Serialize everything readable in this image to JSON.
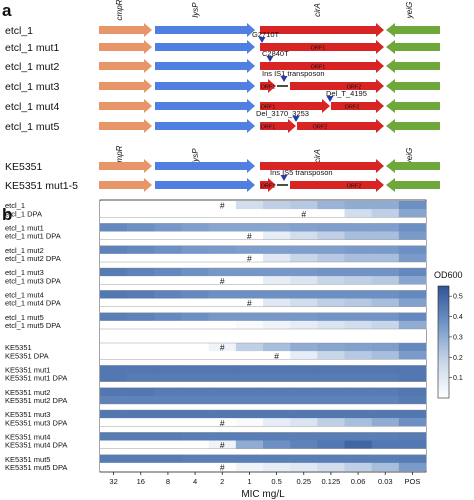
{
  "panel_a": {
    "label": "a",
    "gene_names": {
      "cmpR": "cmpR",
      "lysP": "lysP",
      "cirA": "cirA",
      "yeiG": "yeiG"
    },
    "strains": [
      {
        "name": "etcl_1"
      },
      {
        "name": "etcl_1 mut1",
        "annotations": [
          "G2710T"
        ],
        "orfs": [
          "ORF1"
        ]
      },
      {
        "name": "etcl_1 mut2",
        "annotations": [
          "C2840T"
        ],
        "orfs": [
          "ORF1"
        ]
      },
      {
        "name": "etcl_1 mut3",
        "annotations": [
          "Ins IS1 transposon"
        ],
        "orfs": [
          "ORF1",
          "ORF2"
        ]
      },
      {
        "name": "etcl_1 mut4",
        "annotations": [
          "Del_T_4195"
        ],
        "orfs": [
          "ORF1",
          "ORF2"
        ]
      },
      {
        "name": "etcl_1 mut5",
        "annotations": [
          "Del_3170_3253"
        ],
        "orfs": [
          "ORF1",
          "ORF2"
        ]
      },
      {
        "name": "KE5351"
      },
      {
        "name": "KE5351 mut1-5",
        "annotations": [
          "Ins IS5 transposon"
        ],
        "orfs": [
          "ORF1",
          "ORF2"
        ]
      }
    ],
    "colors": {
      "cmpR": "#e8956a",
      "lysP": "#4f7fe0",
      "cirA": "#d92424",
      "yeiG": "#6ea83a",
      "marker": "#2b3aa8"
    }
  },
  "panel_b": {
    "label": "b",
    "xlabel": "MIC mg/L",
    "colorbar_label": "OD600",
    "colorbar_ticks": [
      "0.1",
      "0.2",
      "0.3",
      "0.4",
      "0.5"
    ],
    "x_ticks": [
      "32",
      "16",
      "8",
      "4",
      "2",
      "1",
      "0.5",
      "0.25",
      "0.125",
      "0.06",
      "0.03",
      "POS"
    ],
    "hash_symbol": "#"
  },
  "chart_data": {
    "type": "heatmap",
    "xlabel": "MIC mg/L",
    "x": [
      "32",
      "16",
      "8",
      "4",
      "2",
      "1",
      "0.5",
      "0.25",
      "0.125",
      "0.06",
      "0.03",
      "POS"
    ],
    "colorbar": {
      "label": "OD600",
      "range": [
        0.0,
        0.55
      ]
    },
    "rows": [
      {
        "label": "etcl_1",
        "values": [
          0.0,
          0.0,
          0.0,
          0.0,
          0.0,
          0.15,
          0.2,
          0.22,
          0.28,
          0.3,
          0.3,
          0.38
        ],
        "mic_index": 4
      },
      {
        "label": "etcl_1 DPA",
        "values": [
          0.0,
          0.0,
          0.0,
          0.0,
          0.0,
          0.0,
          0.0,
          0.0,
          0.0,
          0.15,
          0.2,
          0.32
        ],
        "mic_index": 7
      },
      {
        "label": "etcl_1 mut1",
        "values": [
          0.4,
          0.38,
          0.36,
          0.34,
          0.32,
          0.32,
          0.32,
          0.33,
          0.34,
          0.34,
          0.34,
          0.38
        ],
        "mic_index": null
      },
      {
        "label": "etcl_1 mut1 DPA",
        "values": [
          0.0,
          0.0,
          0.0,
          0.0,
          0.0,
          0.0,
          0.08,
          0.15,
          0.2,
          0.25,
          0.25,
          0.35
        ],
        "mic_index": 5
      },
      {
        "label": "etcl_1 mut2",
        "values": [
          0.42,
          0.4,
          0.38,
          0.36,
          0.35,
          0.34,
          0.34,
          0.34,
          0.34,
          0.35,
          0.35,
          0.38
        ],
        "mic_index": null
      },
      {
        "label": "etcl_1 mut2 DPA",
        "values": [
          0.0,
          0.0,
          0.0,
          0.0,
          0.0,
          0.0,
          0.1,
          0.18,
          0.22,
          0.25,
          0.25,
          0.35
        ],
        "mic_index": 5
      },
      {
        "label": "etcl_1 mut3",
        "values": [
          0.44,
          0.42,
          0.4,
          0.38,
          0.36,
          0.36,
          0.36,
          0.36,
          0.37,
          0.37,
          0.37,
          0.4
        ],
        "mic_index": null
      },
      {
        "label": "etcl_1 mut3 DPA",
        "values": [
          0.0,
          0.0,
          0.0,
          0.0,
          0.0,
          0.0,
          0.08,
          0.12,
          0.18,
          0.2,
          0.22,
          0.32
        ],
        "mic_index": 4
      },
      {
        "label": "etcl_1 mut4",
        "values": [
          0.45,
          0.44,
          0.42,
          0.4,
          0.38,
          0.38,
          0.38,
          0.38,
          0.38,
          0.38,
          0.38,
          0.4
        ],
        "mic_index": null
      },
      {
        "label": "etcl_1 mut4 DPA",
        "values": [
          0.0,
          0.0,
          0.0,
          0.0,
          0.0,
          0.0,
          0.1,
          0.15,
          0.2,
          0.22,
          0.25,
          0.33
        ],
        "mic_index": 5
      },
      {
        "label": "etcl_1 mut5",
        "values": [
          0.43,
          0.42,
          0.4,
          0.38,
          0.36,
          0.36,
          0.36,
          0.36,
          0.37,
          0.37,
          0.37,
          0.4
        ],
        "mic_index": null
      },
      {
        "label": "etcl_1 mut5 DPA",
        "values": [
          0.0,
          0.0,
          0.0,
          0.0,
          0.0,
          0.02,
          0.05,
          0.08,
          0.12,
          0.15,
          0.18,
          0.3
        ],
        "mic_index": null
      },
      {
        "label": "KE5351",
        "values": [
          0.0,
          0.0,
          0.0,
          0.0,
          0.05,
          0.2,
          0.25,
          0.3,
          0.32,
          0.33,
          0.34,
          0.4
        ],
        "mic_index": 4
      },
      {
        "label": "KE5351 DPA",
        "values": [
          0.0,
          0.0,
          0.0,
          0.0,
          0.0,
          0.0,
          0.0,
          0.08,
          0.18,
          0.22,
          0.25,
          0.35
        ],
        "mic_index": 6
      },
      {
        "label": "KE5351 mut1",
        "values": [
          0.45,
          0.45,
          0.45,
          0.45,
          0.45,
          0.45,
          0.45,
          0.45,
          0.45,
          0.45,
          0.45,
          0.45
        ],
        "mic_index": null
      },
      {
        "label": "KE5351 mut1 DPA",
        "values": [
          0.45,
          0.44,
          0.44,
          0.44,
          0.44,
          0.44,
          0.44,
          0.44,
          0.44,
          0.44,
          0.44,
          0.45
        ],
        "mic_index": null
      },
      {
        "label": "KE5351 mut2",
        "values": [
          0.45,
          0.45,
          0.44,
          0.44,
          0.44,
          0.44,
          0.44,
          0.44,
          0.44,
          0.44,
          0.44,
          0.45
        ],
        "mic_index": null
      },
      {
        "label": "KE5351 mut2 DPA",
        "values": [
          0.42,
          0.42,
          0.42,
          0.42,
          0.42,
          0.42,
          0.42,
          0.42,
          0.42,
          0.42,
          0.42,
          0.44
        ],
        "mic_index": null
      },
      {
        "label": "KE5351 mut3",
        "values": [
          0.45,
          0.45,
          0.45,
          0.45,
          0.45,
          0.45,
          0.45,
          0.45,
          0.45,
          0.45,
          0.45,
          0.45
        ],
        "mic_index": null
      },
      {
        "label": "KE5351 mut3 DPA",
        "values": [
          0.0,
          0.0,
          0.0,
          0.0,
          0.0,
          0.02,
          0.08,
          0.12,
          0.2,
          0.25,
          0.3,
          0.38
        ],
        "mic_index": 4
      },
      {
        "label": "KE5351 mut4",
        "values": [
          0.44,
          0.44,
          0.44,
          0.43,
          0.43,
          0.43,
          0.43,
          0.43,
          0.43,
          0.43,
          0.43,
          0.44
        ],
        "mic_index": null
      },
      {
        "label": "KE5351 mut4 DPA",
        "values": [
          0.0,
          0.0,
          0.0,
          0.0,
          0.05,
          0.3,
          0.38,
          0.42,
          0.45,
          0.5,
          0.45,
          0.45
        ],
        "mic_index": 4
      },
      {
        "label": "KE5351 mut5",
        "values": [
          0.44,
          0.44,
          0.44,
          0.43,
          0.43,
          0.43,
          0.43,
          0.43,
          0.43,
          0.43,
          0.43,
          0.44
        ],
        "mic_index": null
      },
      {
        "label": "KE5351 mut5 DPA",
        "values": [
          0.0,
          0.0,
          0.0,
          0.0,
          0.0,
          0.05,
          0.08,
          0.1,
          0.15,
          0.2,
          0.25,
          0.35
        ],
        "mic_index": 4
      }
    ]
  }
}
